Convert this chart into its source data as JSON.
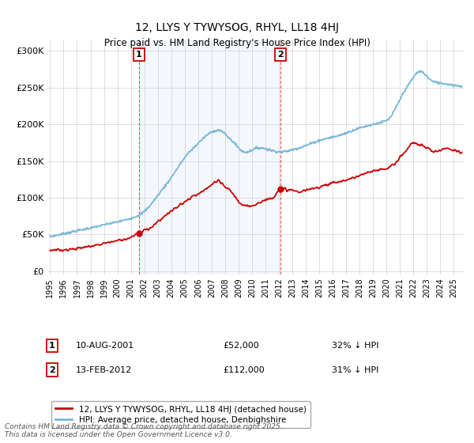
{
  "title": "12, LLYS Y TYWYSOG, RHYL, LL18 4HJ",
  "subtitle": "Price paid vs. HM Land Registry's House Price Index (HPI)",
  "ylabel_ticks": [
    "£0",
    "£50K",
    "£100K",
    "£150K",
    "£200K",
    "£250K",
    "£300K"
  ],
  "ytick_values": [
    0,
    50000,
    100000,
    150000,
    200000,
    250000,
    300000
  ],
  "ylim": [
    -5000,
    315000
  ],
  "xlim_start": 1994.8,
  "xlim_end": 2025.8,
  "purchase1": {
    "date_num": 2001.614,
    "price": 52000,
    "label": "1",
    "date_str": "10-AUG-2001",
    "price_str": "£52,000",
    "pct": "32% ↓ HPI"
  },
  "purchase2": {
    "date_num": 2012.12,
    "price": 112000,
    "label": "2",
    "date_str": "13-FEB-2012",
    "price_str": "£112,000",
    "pct": "31% ↓ HPI"
  },
  "hpi_color": "#7ab8d9",
  "price_color": "#cc0000",
  "shading_color": "#ddeeff",
  "legend_label_red": "12, LLYS Y TYWYSOG, RHYL, LL18 4HJ (detached house)",
  "legend_label_blue": "HPI: Average price, detached house, Denbighshire",
  "footnote": "Contains HM Land Registry data © Crown copyright and database right 2025.\nThis data is licensed under the Open Government Licence v3.0.",
  "xtick_years": [
    1995,
    1996,
    1997,
    1998,
    1999,
    2000,
    2001,
    2002,
    2003,
    2004,
    2005,
    2006,
    2007,
    2008,
    2009,
    2010,
    2011,
    2012,
    2013,
    2014,
    2015,
    2016,
    2017,
    2018,
    2019,
    2020,
    2021,
    2022,
    2023,
    2024,
    2025
  ]
}
